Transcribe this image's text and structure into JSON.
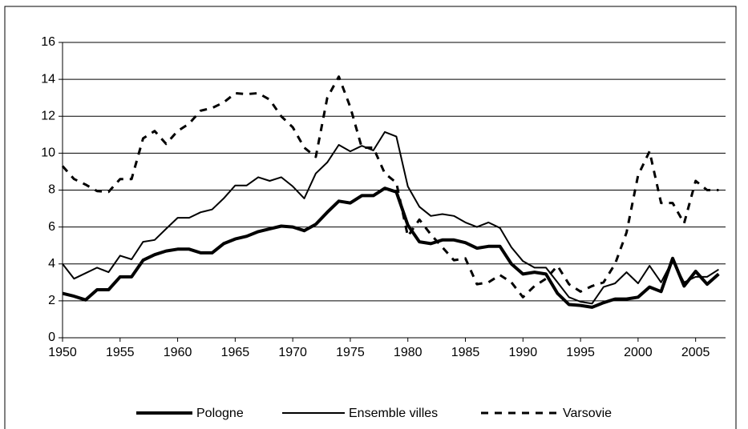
{
  "chart_data": {
    "type": "line",
    "x": [
      1950,
      1951,
      1952,
      1953,
      1954,
      1955,
      1956,
      1957,
      1958,
      1959,
      1960,
      1961,
      1962,
      1963,
      1964,
      1965,
      1966,
      1967,
      1968,
      1969,
      1970,
      1971,
      1972,
      1973,
      1974,
      1975,
      1976,
      1977,
      1978,
      1979,
      1980,
      1981,
      1982,
      1983,
      1984,
      1985,
      1986,
      1987,
      1988,
      1989,
      1990,
      1991,
      1992,
      1993,
      1994,
      1995,
      1996,
      1997,
      1998,
      1999,
      2000,
      2001,
      2002,
      2003,
      2004,
      2005,
      2006,
      2007
    ],
    "series": [
      {
        "name": "Pologne",
        "color": "#000000",
        "linewidth": 4,
        "linestyle": "solid",
        "values": [
          2.4,
          2.25,
          2.05,
          2.6,
          2.6,
          3.3,
          3.3,
          4.2,
          4.5,
          4.7,
          4.8,
          4.8,
          4.6,
          4.6,
          5.1,
          5.35,
          5.5,
          5.75,
          5.9,
          6.05,
          6.0,
          5.8,
          6.15,
          6.8,
          7.4,
          7.3,
          7.7,
          7.7,
          8.1,
          7.9,
          6.1,
          5.2,
          5.1,
          5.3,
          5.3,
          5.15,
          4.85,
          4.95,
          4.95,
          4.0,
          3.45,
          3.55,
          3.45,
          2.4,
          1.8,
          1.75,
          1.65,
          1.9,
          2.1,
          2.1,
          2.2,
          2.75,
          2.5,
          4.3,
          2.8,
          3.6,
          2.9,
          3.45
        ]
      },
      {
        "name": "Ensemble villes",
        "color": "#000000",
        "linewidth": 2,
        "linestyle": "solid",
        "values": [
          4.0,
          3.2,
          3.5,
          3.8,
          3.55,
          4.45,
          4.25,
          5.2,
          5.3,
          5.9,
          6.5,
          6.5,
          6.8,
          6.95,
          7.55,
          8.25,
          8.25,
          8.7,
          8.5,
          8.7,
          8.2,
          7.55,
          8.9,
          9.5,
          10.45,
          10.1,
          10.4,
          10.15,
          11.15,
          10.9,
          8.2,
          7.1,
          6.6,
          6.7,
          6.6,
          6.25,
          6.0,
          6.25,
          5.95,
          4.9,
          4.15,
          3.8,
          3.8,
          3.0,
          2.2,
          1.95,
          1.85,
          2.75,
          2.95,
          3.55,
          2.95,
          3.9,
          3.0,
          4.2,
          3.0,
          3.3,
          3.3,
          3.7
        ]
      },
      {
        "name": "Varsovie",
        "color": "#000000",
        "linewidth": 3,
        "linestyle": "dashed",
        "values": [
          9.3,
          8.6,
          8.3,
          7.95,
          7.9,
          8.6,
          8.6,
          10.8,
          11.2,
          10.5,
          11.2,
          11.6,
          12.3,
          12.45,
          12.75,
          13.25,
          13.2,
          13.25,
          12.9,
          12.0,
          11.4,
          10.3,
          9.8,
          13.0,
          14.15,
          12.5,
          10.3,
          10.3,
          8.9,
          8.4,
          5.5,
          6.4,
          5.6,
          4.9,
          4.2,
          4.3,
          2.9,
          3.0,
          3.4,
          3.0,
          2.2,
          2.8,
          3.2,
          3.9,
          2.9,
          2.5,
          2.8,
          3.0,
          4.0,
          5.7,
          8.8,
          10.1,
          7.3,
          7.3,
          6.2,
          8.5,
          8.0,
          8.0
        ]
      }
    ],
    "xlim": [
      1950,
      2007.6
    ],
    "xticks": [
      1950,
      1955,
      1960,
      1965,
      1970,
      1975,
      1980,
      1985,
      1990,
      1995,
      2000,
      2005
    ],
    "ylim": [
      0,
      16
    ],
    "yticks": [
      0,
      2,
      4,
      6,
      8,
      10,
      12,
      14,
      16
    ],
    "grid": true,
    "legend": "bottom"
  }
}
